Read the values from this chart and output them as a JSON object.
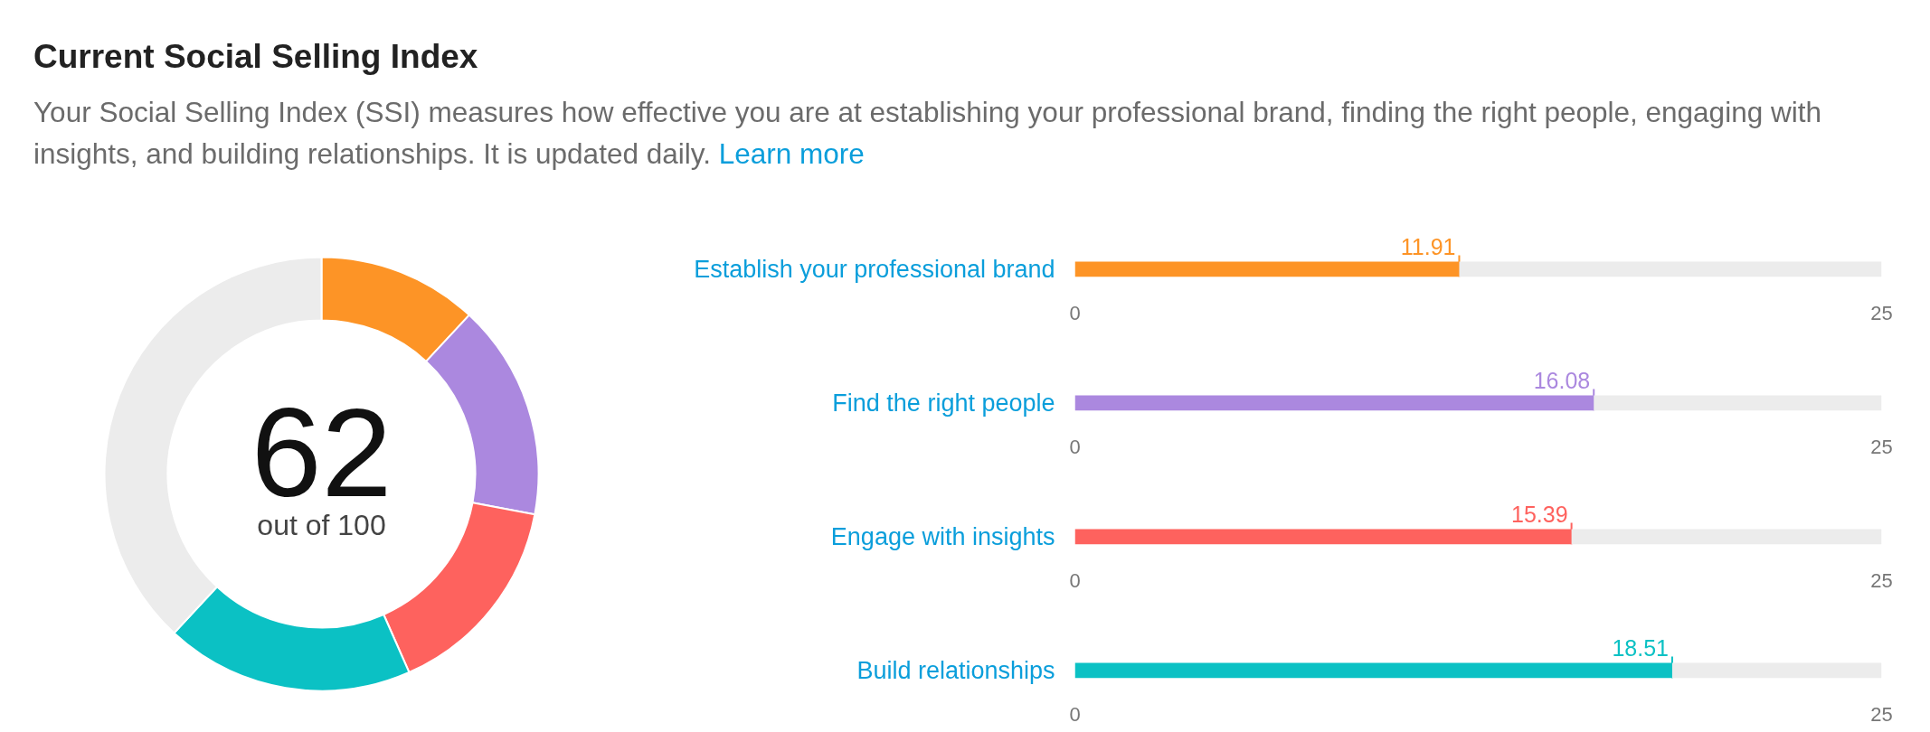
{
  "chart_data": [
    {
      "type": "donut",
      "title": "Current Social Selling Index",
      "subtitle": "Your Social Selling Index (SSI) measures how effective you are at establishing your professional brand, finding the right people, engaging with insights, and building relationships. It is updated daily.",
      "annotations": [
        "Learn more",
        "62",
        "out of 100"
      ],
      "categories": [
        null,
        null,
        null,
        null,
        null
      ],
      "values": [
        11.91,
        16.08,
        15.39,
        18.51,
        38.11
      ],
      "colors": [
        "#fd9426",
        "#ab88df",
        "#fe625e",
        "#0bc1c4",
        "#ececec"
      ]
    },
    {
      "type": "bar",
      "orientation": "horizontal",
      "stacked": true,
      "categories": [
        "Establish your professional brand"
      ],
      "series": [
        {
          "color": "#fd9426",
          "values": [
            11.91
          ],
          "value_labels": [
            "11.91"
          ]
        },
        {
          "color": "#ececec",
          "values": [
            13.09
          ]
        }
      ],
      "xlim": [
        0,
        25
      ],
      "xticks": [
        0,
        25
      ]
    },
    {
      "type": "bar",
      "orientation": "horizontal",
      "stacked": true,
      "categories": [
        "Find the right people"
      ],
      "series": [
        {
          "color": "#ab88df",
          "values": [
            16.08
          ],
          "value_labels": [
            "16.08"
          ]
        },
        {
          "color": "#ececec",
          "values": [
            8.92
          ]
        }
      ],
      "xlim": [
        0,
        25
      ],
      "xticks": [
        0,
        25
      ]
    },
    {
      "type": "bar",
      "orientation": "horizontal",
      "stacked": true,
      "categories": [
        "Engage with insights"
      ],
      "series": [
        {
          "color": "#fe625e",
          "values": [
            15.39
          ],
          "value_labels": [
            "15.39"
          ]
        },
        {
          "color": "#ececec",
          "values": [
            9.61
          ]
        }
      ],
      "xlim": [
        0,
        25
      ],
      "xticks": [
        0,
        25
      ]
    },
    {
      "type": "bar",
      "orientation": "horizontal",
      "stacked": true,
      "categories": [
        "Build relationships"
      ],
      "series": [
        {
          "color": "#0bc1c4",
          "values": [
            18.51
          ],
          "value_labels": [
            "18.51"
          ]
        },
        {
          "color": "#ececec",
          "values": [
            6.49
          ]
        }
      ],
      "xlim": [
        0,
        25
      ],
      "xticks": [
        0,
        25
      ]
    }
  ]
}
